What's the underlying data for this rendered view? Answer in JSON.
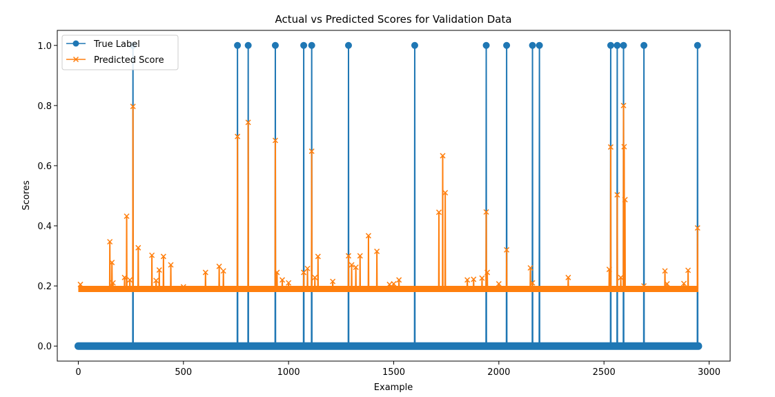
{
  "chart_data": {
    "type": "line",
    "title": "Actual vs Predicted Scores for Validation Data",
    "xlabel": "Example",
    "ylabel": "Scores",
    "xlim": [
      -100,
      3100
    ],
    "ylim": [
      -0.05,
      1.05
    ],
    "xticks": [
      0,
      500,
      1000,
      1500,
      2000,
      2500,
      3000
    ],
    "yticks": [
      0.0,
      0.2,
      0.4,
      0.6,
      0.8,
      1.0
    ],
    "xtick_labels": [
      "0",
      "500",
      "1000",
      "1500",
      "2000",
      "2500",
      "3000"
    ],
    "ytick_labels": [
      "0.0",
      "0.2",
      "0.4",
      "0.6",
      "0.8",
      "1.0"
    ],
    "grid": false,
    "legend_position": "top-left",
    "n_examples": 2950,
    "series": [
      {
        "name": "True Label",
        "color": "#1f77b4",
        "marker": "circle",
        "baseline": 0.0,
        "positive_indices": [
          260,
          757,
          808,
          937,
          1072,
          1110,
          1285,
          1600,
          1940,
          2037,
          2160,
          2193,
          2532,
          2563,
          2593,
          2690,
          2945
        ],
        "positive_value": 1.0
      },
      {
        "name": "Predicted Score",
        "color": "#ff7f0e",
        "marker": "x",
        "baseline": 0.19,
        "spikes": [
          [
            10,
            0.205
          ],
          [
            150,
            0.347
          ],
          [
            160,
            0.278
          ],
          [
            165,
            0.21
          ],
          [
            220,
            0.228
          ],
          [
            230,
            0.432
          ],
          [
            245,
            0.22
          ],
          [
            260,
            0.797
          ],
          [
            285,
            0.327
          ],
          [
            350,
            0.302
          ],
          [
            370,
            0.218
          ],
          [
            385,
            0.253
          ],
          [
            405,
            0.298
          ],
          [
            440,
            0.27
          ],
          [
            500,
            0.197
          ],
          [
            605,
            0.245
          ],
          [
            670,
            0.265
          ],
          [
            690,
            0.25
          ],
          [
            757,
            0.697
          ],
          [
            808,
            0.744
          ],
          [
            937,
            0.684
          ],
          [
            945,
            0.245
          ],
          [
            970,
            0.22
          ],
          [
            1000,
            0.21
          ],
          [
            1072,
            0.245
          ],
          [
            1090,
            0.258
          ],
          [
            1110,
            0.648
          ],
          [
            1125,
            0.228
          ],
          [
            1140,
            0.298
          ],
          [
            1210,
            0.215
          ],
          [
            1285,
            0.3
          ],
          [
            1300,
            0.27
          ],
          [
            1320,
            0.262
          ],
          [
            1340,
            0.3
          ],
          [
            1380,
            0.367
          ],
          [
            1420,
            0.315
          ],
          [
            1480,
            0.205
          ],
          [
            1500,
            0.207
          ],
          [
            1525,
            0.22
          ],
          [
            1715,
            0.445
          ],
          [
            1733,
            0.633
          ],
          [
            1745,
            0.51
          ],
          [
            1850,
            0.22
          ],
          [
            1880,
            0.222
          ],
          [
            1920,
            0.226
          ],
          [
            1940,
            0.446
          ],
          [
            1945,
            0.245
          ],
          [
            2000,
            0.207
          ],
          [
            2037,
            0.32
          ],
          [
            2150,
            0.26
          ],
          [
            2160,
            0.21
          ],
          [
            2330,
            0.228
          ],
          [
            2525,
            0.255
          ],
          [
            2532,
            0.662
          ],
          [
            2563,
            0.503
          ],
          [
            2580,
            0.228
          ],
          [
            2593,
            0.8
          ],
          [
            2596,
            0.663
          ],
          [
            2600,
            0.487
          ],
          [
            2690,
            0.2
          ],
          [
            2790,
            0.25
          ],
          [
            2800,
            0.207
          ],
          [
            2880,
            0.208
          ],
          [
            2900,
            0.252
          ],
          [
            2945,
            0.393
          ]
        ]
      }
    ]
  }
}
